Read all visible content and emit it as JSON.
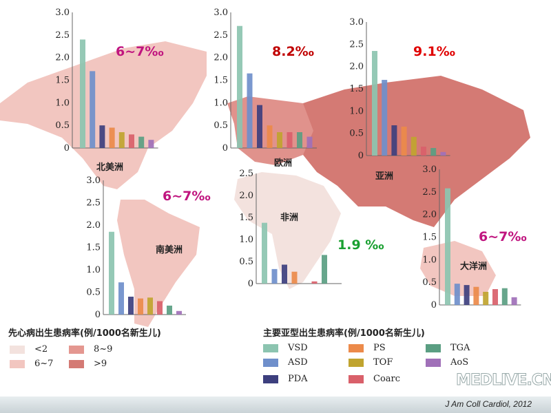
{
  "colors": {
    "VSD": "#8cc4b0",
    "ASD": "#6f8fcb",
    "PDA": "#3d3f7e",
    "PS": "#ec8a4a",
    "TOF": "#c0a42f",
    "Coarc": "#d9606a",
    "TGA": "#5a9e82",
    "AoS": "#a070b8",
    "rate_lt2": "#f3e2de",
    "rate_6_7": "#f2c6c0",
    "rate_8_9": "#e49790",
    "rate_gt9": "#d47a74"
  },
  "chart_data": [
    {
      "type": "bar",
      "region": "北美洲",
      "rate": "6~7‰",
      "categories": [
        "VSD",
        "ASD",
        "PDA",
        "PS",
        "TOF",
        "Coarc",
        "TGA",
        "AoS"
      ],
      "values": [
        2.4,
        1.7,
        0.5,
        0.45,
        0.35,
        0.3,
        0.25,
        0.18
      ],
      "ylim": [
        0,
        3
      ],
      "yticks": [
        "0",
        "0.5",
        "1.0",
        "1.5",
        "2.0",
        "2.5",
        "3.0"
      ]
    },
    {
      "type": "bar",
      "region": "欧洲",
      "rate": "8.2‰",
      "categories": [
        "VSD",
        "ASD",
        "PDA",
        "PS",
        "TOF",
        "Coarc",
        "TGA",
        "AoS"
      ],
      "values": [
        2.7,
        1.65,
        0.95,
        0.5,
        0.35,
        0.35,
        0.35,
        0.25
      ],
      "ylim": [
        0,
        3
      ],
      "yticks": [
        "0",
        "0.5",
        "1.0",
        "1.5",
        "2.0",
        "2.5",
        "3.0"
      ]
    },
    {
      "type": "bar",
      "region": "亚洲",
      "rate": "9.1‰",
      "categories": [
        "VSD",
        "ASD",
        "PDA",
        "PS",
        "TOF",
        "Coarc",
        "TGA",
        "AoS"
      ],
      "values": [
        2.35,
        1.7,
        0.68,
        0.65,
        0.42,
        0.2,
        0.17,
        0.08
      ],
      "ylim": [
        0,
        3
      ],
      "yticks": [
        "0",
        "0.5",
        "1.0",
        "1.5",
        "2.0",
        "2.5",
        "3.0"
      ]
    },
    {
      "type": "bar",
      "region": "南美洲",
      "rate": "6~7‰",
      "categories": [
        "VSD",
        "ASD",
        "PDA",
        "PS",
        "TOF",
        "Coarc",
        "TGA",
        "AoS"
      ],
      "values": [
        1.85,
        0.72,
        0.4,
        0.36,
        0.38,
        0.3,
        0.2,
        0.08
      ],
      "ylim": [
        0,
        3
      ],
      "yticks": [
        "0",
        "0.5",
        "1.0",
        "1.5",
        "2.0",
        "2.5",
        "3.0"
      ]
    },
    {
      "type": "bar",
      "region": "非洲",
      "rate": "1.9 ‰",
      "categories": [
        "VSD",
        "ASD",
        "PDA",
        "PS",
        "TOF",
        "Coarc",
        "TGA",
        "AoS"
      ],
      "values": [
        1.38,
        0.33,
        0.43,
        0.27,
        0,
        0.05,
        0.65,
        0
      ],
      "ylim": [
        0,
        3
      ],
      "yticks": [
        "0",
        "0.5",
        "1.0",
        "1.5",
        "2.0",
        "2.5"
      ]
    },
    {
      "type": "bar",
      "region": "大洋洲",
      "rate": "6~7‰",
      "categories": [
        "VSD",
        "ASD",
        "PDA",
        "PS",
        "TOF",
        "Coarc",
        "TGA",
        "AoS"
      ],
      "values": [
        2.58,
        0.47,
        0.44,
        0.4,
        0.29,
        0.35,
        0.37,
        0.17
      ],
      "ylim": [
        0,
        3
      ],
      "yticks": [
        "0",
        "0.5",
        "1.0",
        "1.5",
        "2.0",
        "2.5",
        "3.0"
      ]
    }
  ],
  "rate_colors": [
    "#c0157f",
    "#c00000",
    "#e00000",
    "#c0157f",
    "#19a030",
    "#c0157f"
  ],
  "legend_rate": {
    "title": "先心病出生患病率(例/1000名新生儿)",
    "items": [
      "<2",
      "6~7",
      "8~9",
      ">9"
    ]
  },
  "legend_subtype": {
    "title": "主要亚型出生患病率(例/1000名新生儿)",
    "items": [
      "VSD",
      "ASD",
      "PDA",
      "PS",
      "TOF",
      "Coarc",
      "TGA",
      "AoS"
    ]
  },
  "watermark": "MEDLIVE.CN",
  "citation": "J Am Coll Cardiol, 2012"
}
